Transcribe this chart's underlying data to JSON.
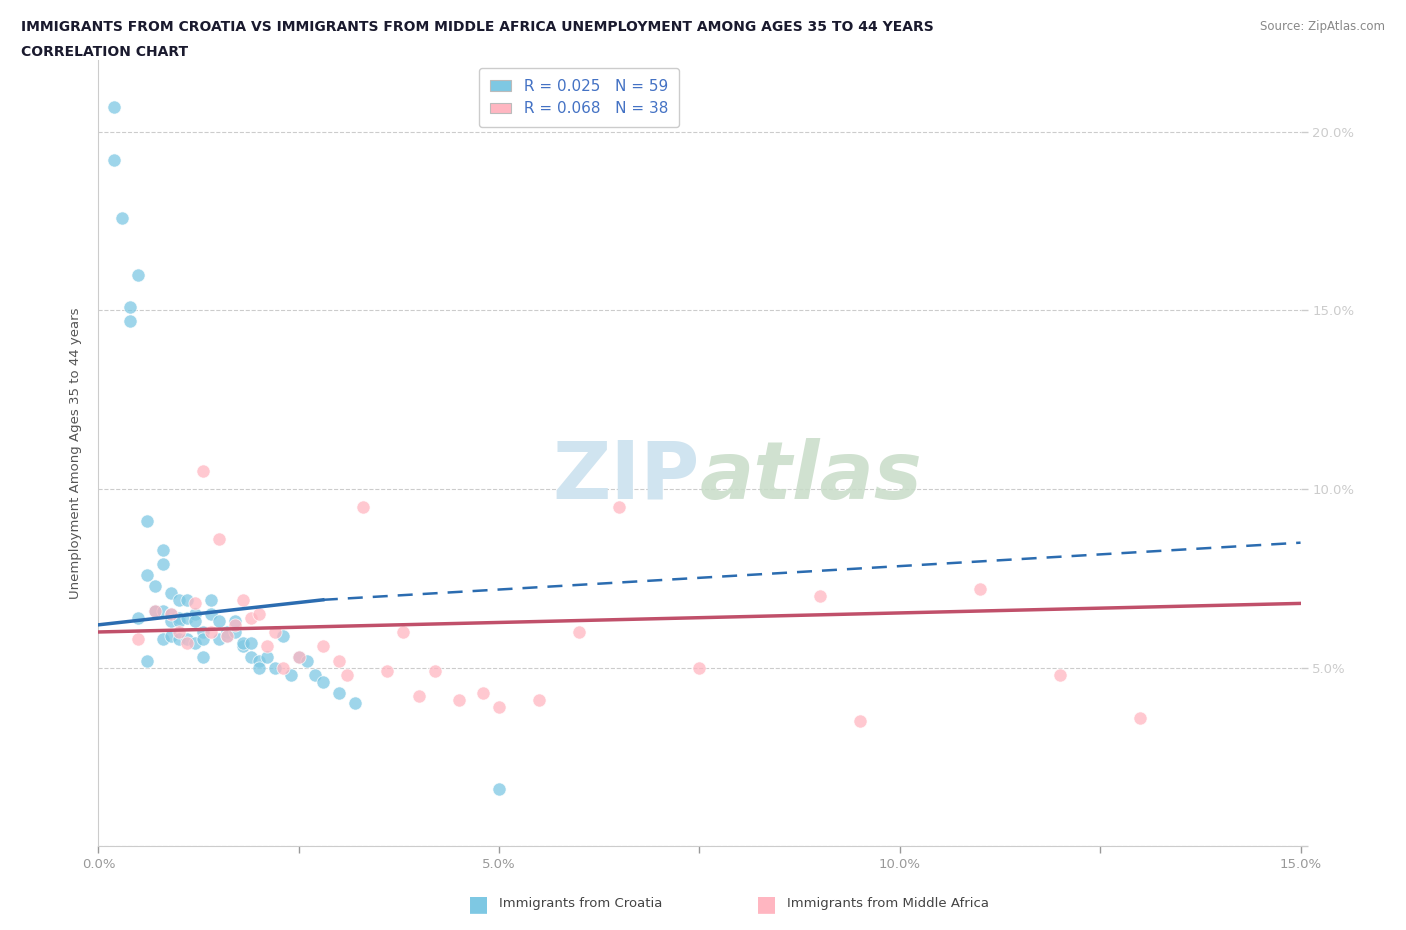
{
  "title_line1": "IMMIGRANTS FROM CROATIA VS IMMIGRANTS FROM MIDDLE AFRICA UNEMPLOYMENT AMONG AGES 35 TO 44 YEARS",
  "title_line2": "CORRELATION CHART",
  "source_text": "Source: ZipAtlas.com",
  "ylabel": "Unemployment Among Ages 35 to 44 years",
  "xlim": [
    0,
    0.15
  ],
  "ylim": [
    0,
    0.22
  ],
  "xticks": [
    0.0,
    0.025,
    0.05,
    0.075,
    0.1,
    0.125,
    0.15
  ],
  "xtick_labels": [
    "0.0%",
    "",
    "5.0%",
    "",
    "10.0%",
    "",
    "15.0%"
  ],
  "ytick_labels_right": [
    "",
    "5.0%",
    "10.0%",
    "15.0%",
    "20.0%"
  ],
  "ytick_vals": [
    0.0,
    0.05,
    0.1,
    0.15,
    0.2
  ],
  "legend_r1": "R = 0.025",
  "legend_n1": "N = 59",
  "legend_r2": "R = 0.068",
  "legend_n2": "N = 38",
  "color_croatia": "#7ec8e3",
  "color_middle_africa": "#ffb6c1",
  "color_trendline_croatia": "#2b6cb0",
  "color_trendline_middle_africa": "#c0506a",
  "watermark_color": "#d0e4f0",
  "background_color": "#ffffff",
  "croatia_scatter_x": [
    0.002,
    0.002,
    0.003,
    0.004,
    0.004,
    0.005,
    0.005,
    0.006,
    0.006,
    0.006,
    0.007,
    0.007,
    0.007,
    0.008,
    0.008,
    0.008,
    0.008,
    0.009,
    0.009,
    0.009,
    0.009,
    0.01,
    0.01,
    0.01,
    0.01,
    0.011,
    0.011,
    0.011,
    0.012,
    0.012,
    0.012,
    0.013,
    0.013,
    0.013,
    0.014,
    0.014,
    0.015,
    0.015,
    0.016,
    0.016,
    0.017,
    0.017,
    0.018,
    0.018,
    0.019,
    0.019,
    0.02,
    0.02,
    0.021,
    0.022,
    0.023,
    0.024,
    0.025,
    0.026,
    0.027,
    0.028,
    0.03,
    0.032,
    0.05
  ],
  "croatia_scatter_y": [
    0.192,
    0.207,
    0.176,
    0.151,
    0.147,
    0.16,
    0.064,
    0.091,
    0.076,
    0.052,
    0.073,
    0.066,
    0.066,
    0.083,
    0.079,
    0.066,
    0.058,
    0.071,
    0.065,
    0.063,
    0.059,
    0.069,
    0.064,
    0.063,
    0.058,
    0.069,
    0.064,
    0.058,
    0.065,
    0.057,
    0.063,
    0.06,
    0.058,
    0.053,
    0.065,
    0.069,
    0.063,
    0.058,
    0.06,
    0.059,
    0.06,
    0.063,
    0.056,
    0.057,
    0.053,
    0.057,
    0.052,
    0.05,
    0.053,
    0.05,
    0.059,
    0.048,
    0.053,
    0.052,
    0.048,
    0.046,
    0.043,
    0.04,
    0.016
  ],
  "middle_africa_scatter_x": [
    0.005,
    0.007,
    0.009,
    0.01,
    0.011,
    0.012,
    0.013,
    0.014,
    0.015,
    0.016,
    0.017,
    0.018,
    0.019,
    0.02,
    0.021,
    0.022,
    0.023,
    0.025,
    0.028,
    0.03,
    0.031,
    0.033,
    0.036,
    0.038,
    0.04,
    0.042,
    0.045,
    0.048,
    0.05,
    0.055,
    0.06,
    0.065,
    0.075,
    0.09,
    0.095,
    0.11,
    0.12,
    0.13
  ],
  "middle_africa_scatter_y": [
    0.058,
    0.066,
    0.065,
    0.06,
    0.057,
    0.068,
    0.105,
    0.06,
    0.086,
    0.059,
    0.062,
    0.069,
    0.064,
    0.065,
    0.056,
    0.06,
    0.05,
    0.053,
    0.056,
    0.052,
    0.048,
    0.095,
    0.049,
    0.06,
    0.042,
    0.049,
    0.041,
    0.043,
    0.039,
    0.041,
    0.06,
    0.095,
    0.05,
    0.07,
    0.035,
    0.072,
    0.048,
    0.036
  ],
  "trendline_croatia_x0": 0.0,
  "trendline_croatia_y0": 0.062,
  "trendline_croatia_x1": 0.028,
  "trendline_croatia_y1": 0.069,
  "trendline_croatia_dash_x1": 0.15,
  "trendline_croatia_dash_y1": 0.085,
  "trendline_middle_x0": 0.0,
  "trendline_middle_y0": 0.06,
  "trendline_middle_x1": 0.15,
  "trendline_middle_y1": 0.068
}
